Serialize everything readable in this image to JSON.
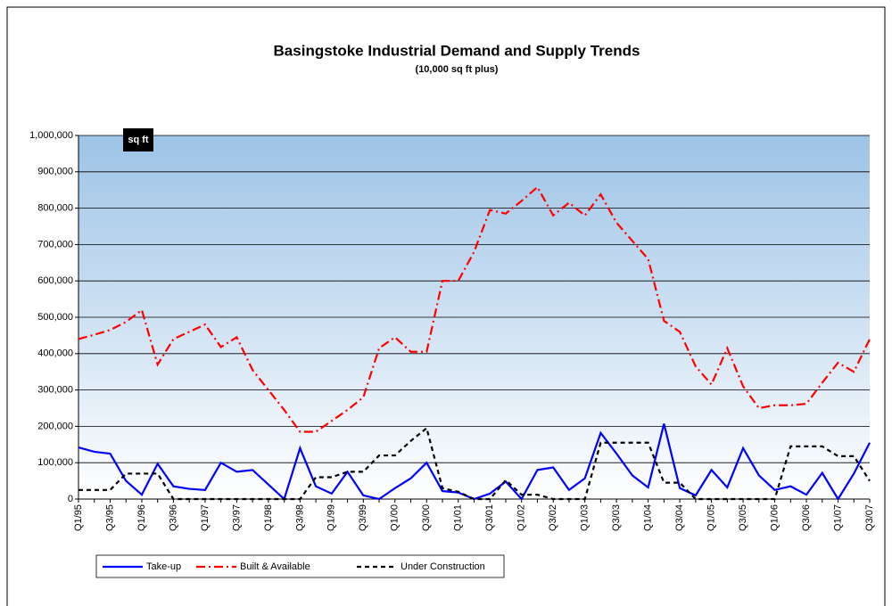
{
  "chart_data": {
    "type": "line",
    "title": "Basingstoke Industrial Demand and Supply Trends",
    "subtitle": "(10,000 sq ft plus)",
    "annotation": "sq ft",
    "categories": [
      "Q1/95",
      null,
      "Q3/95",
      null,
      "Q1/96",
      null,
      "Q3/96",
      null,
      "Q1/97",
      null,
      "Q3/97",
      null,
      "Q1/98",
      null,
      "Q3/98",
      null,
      "Q1/99",
      null,
      "Q3/99",
      null,
      "Q1/00",
      null,
      "Q3/00",
      null,
      "Q1/01",
      null,
      "Q3/01",
      null,
      "Q1/02",
      null,
      "Q3/02",
      null,
      "Q1/03",
      null,
      "Q3/03",
      null,
      "Q1/04",
      null,
      "Q3/04",
      null,
      "Q1/05",
      null,
      "Q3/05",
      null,
      "Q1/06",
      null,
      "Q3/06",
      null,
      "Q1/07",
      null,
      "Q3/07"
    ],
    "series": [
      {
        "name": "Take-up",
        "color": "#0000ff",
        "dash": "solid",
        "values": [
          142000,
          130000,
          125000,
          50000,
          12000,
          97000,
          35000,
          28000,
          25000,
          100000,
          75000,
          80000,
          40000,
          0,
          140000,
          35000,
          15000,
          75000,
          10000,
          0,
          30000,
          57000,
          100000,
          22000,
          18000,
          0,
          15000,
          48000,
          0,
          80000,
          87000,
          25000,
          57000,
          182000,
          125000,
          65000,
          32000,
          207000,
          30000,
          10000,
          80000,
          32000,
          140000,
          65000,
          25000,
          35000,
          12000,
          72000,
          0,
          70000,
          155000
        ]
      },
      {
        "name": "Built & Available",
        "color": "#ff0000",
        "dash": "dashdot",
        "values": [
          440000,
          452000,
          465000,
          487000,
          520000,
          370000,
          440000,
          460000,
          480000,
          418000,
          445000,
          355000,
          300000,
          245000,
          185000,
          185000,
          215000,
          245000,
          280000,
          415000,
          445000,
          405000,
          405000,
          600000,
          600000,
          680000,
          795000,
          785000,
          820000,
          858000,
          780000,
          815000,
          780000,
          838000,
          760000,
          710000,
          660000,
          490000,
          460000,
          365000,
          315000,
          415000,
          310000,
          250000,
          258000,
          258000,
          262000,
          320000,
          375000,
          350000,
          440000
        ]
      },
      {
        "name": "Under Construction",
        "color": "#000000",
        "dash": "dashed",
        "values": [
          25000,
          25000,
          25000,
          70000,
          70000,
          70000,
          0,
          0,
          0,
          0,
          0,
          0,
          0,
          0,
          0,
          60000,
          60000,
          75000,
          75000,
          120000,
          120000,
          160000,
          195000,
          30000,
          20000,
          0,
          0,
          52000,
          12000,
          12000,
          0,
          0,
          0,
          155000,
          155000,
          155000,
          155000,
          45000,
          45000,
          0,
          0,
          0,
          0,
          0,
          0,
          145000,
          145000,
          145000,
          118000,
          118000,
          50000
        ]
      }
    ],
    "ylim": [
      0,
      1000000
    ],
    "yticks": [
      0,
      {
        "value": 100000,
        "label": "100,000"
      },
      {
        "value": 200000,
        "label": "200,000"
      },
      {
        "value": 300000,
        "label": "300,000"
      },
      {
        "value": 400000,
        "label": "400,000"
      },
      {
        "value": 500000,
        "label": "500,000"
      },
      {
        "value": 600000,
        "label": "600,000"
      },
      {
        "value": 700000,
        "label": "700,000"
      },
      {
        "value": 800000,
        "label": "800,000"
      },
      {
        "value": 900000,
        "label": "900,000"
      },
      {
        "value": 1000000,
        "label": "1,000,000"
      }
    ],
    "grid": true,
    "legend": "bottom-left"
  }
}
